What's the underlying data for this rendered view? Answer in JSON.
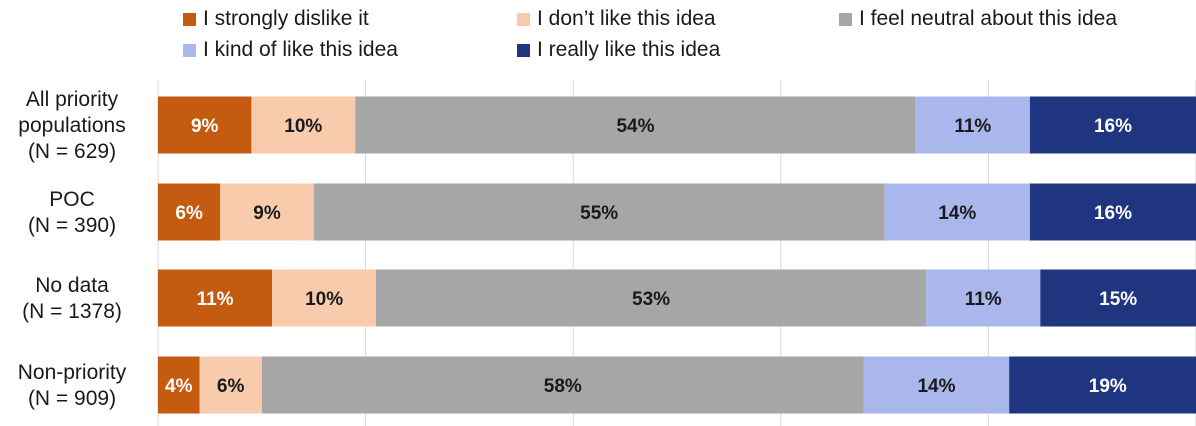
{
  "chart_data": {
    "type": "bar",
    "orientation": "horizontal",
    "stacked": true,
    "percent_stacked": true,
    "grid": true,
    "legend_position": "top",
    "categories": [
      [
        "All priority",
        "populations",
        "(N = 629)"
      ],
      [
        "POC",
        "(N = 390)"
      ],
      [
        "No data",
        "(N = 1378)"
      ],
      [
        "Non-priority",
        "(N = 909)"
      ]
    ],
    "series": [
      {
        "name": "I strongly dislike it",
        "color": "#c55a11",
        "label_color": "#ffffff",
        "values": [
          9,
          6,
          11,
          4
        ]
      },
      {
        "name": "I don’t like this idea",
        "color": "#f8cbad",
        "label_color": "#1a1a1a",
        "values": [
          10,
          9,
          10,
          6
        ]
      },
      {
        "name": "I feel neutral about this idea",
        "color": "#a6a6a6",
        "label_color": "#1a1a1a",
        "values": [
          54,
          55,
          53,
          58
        ]
      },
      {
        "name": "I kind of like this idea",
        "color": "#a9b7ec",
        "label_color": "#1a1a1a",
        "values": [
          11,
          14,
          11,
          14
        ]
      },
      {
        "name": "I really like this idea",
        "color": "#1f3580",
        "label_color": "#ffffff",
        "values": [
          16,
          16,
          15,
          19
        ]
      }
    ],
    "data_labels": [
      [
        "9%",
        "10%",
        "54%",
        "11%",
        "16%"
      ],
      [
        "6%",
        "9%",
        "55%",
        "14%",
        "16%"
      ],
      [
        "11%",
        "10%",
        "53%",
        "11%",
        "15%"
      ],
      [
        "4%",
        "6%",
        "58%",
        "14%",
        "19%"
      ]
    ]
  }
}
